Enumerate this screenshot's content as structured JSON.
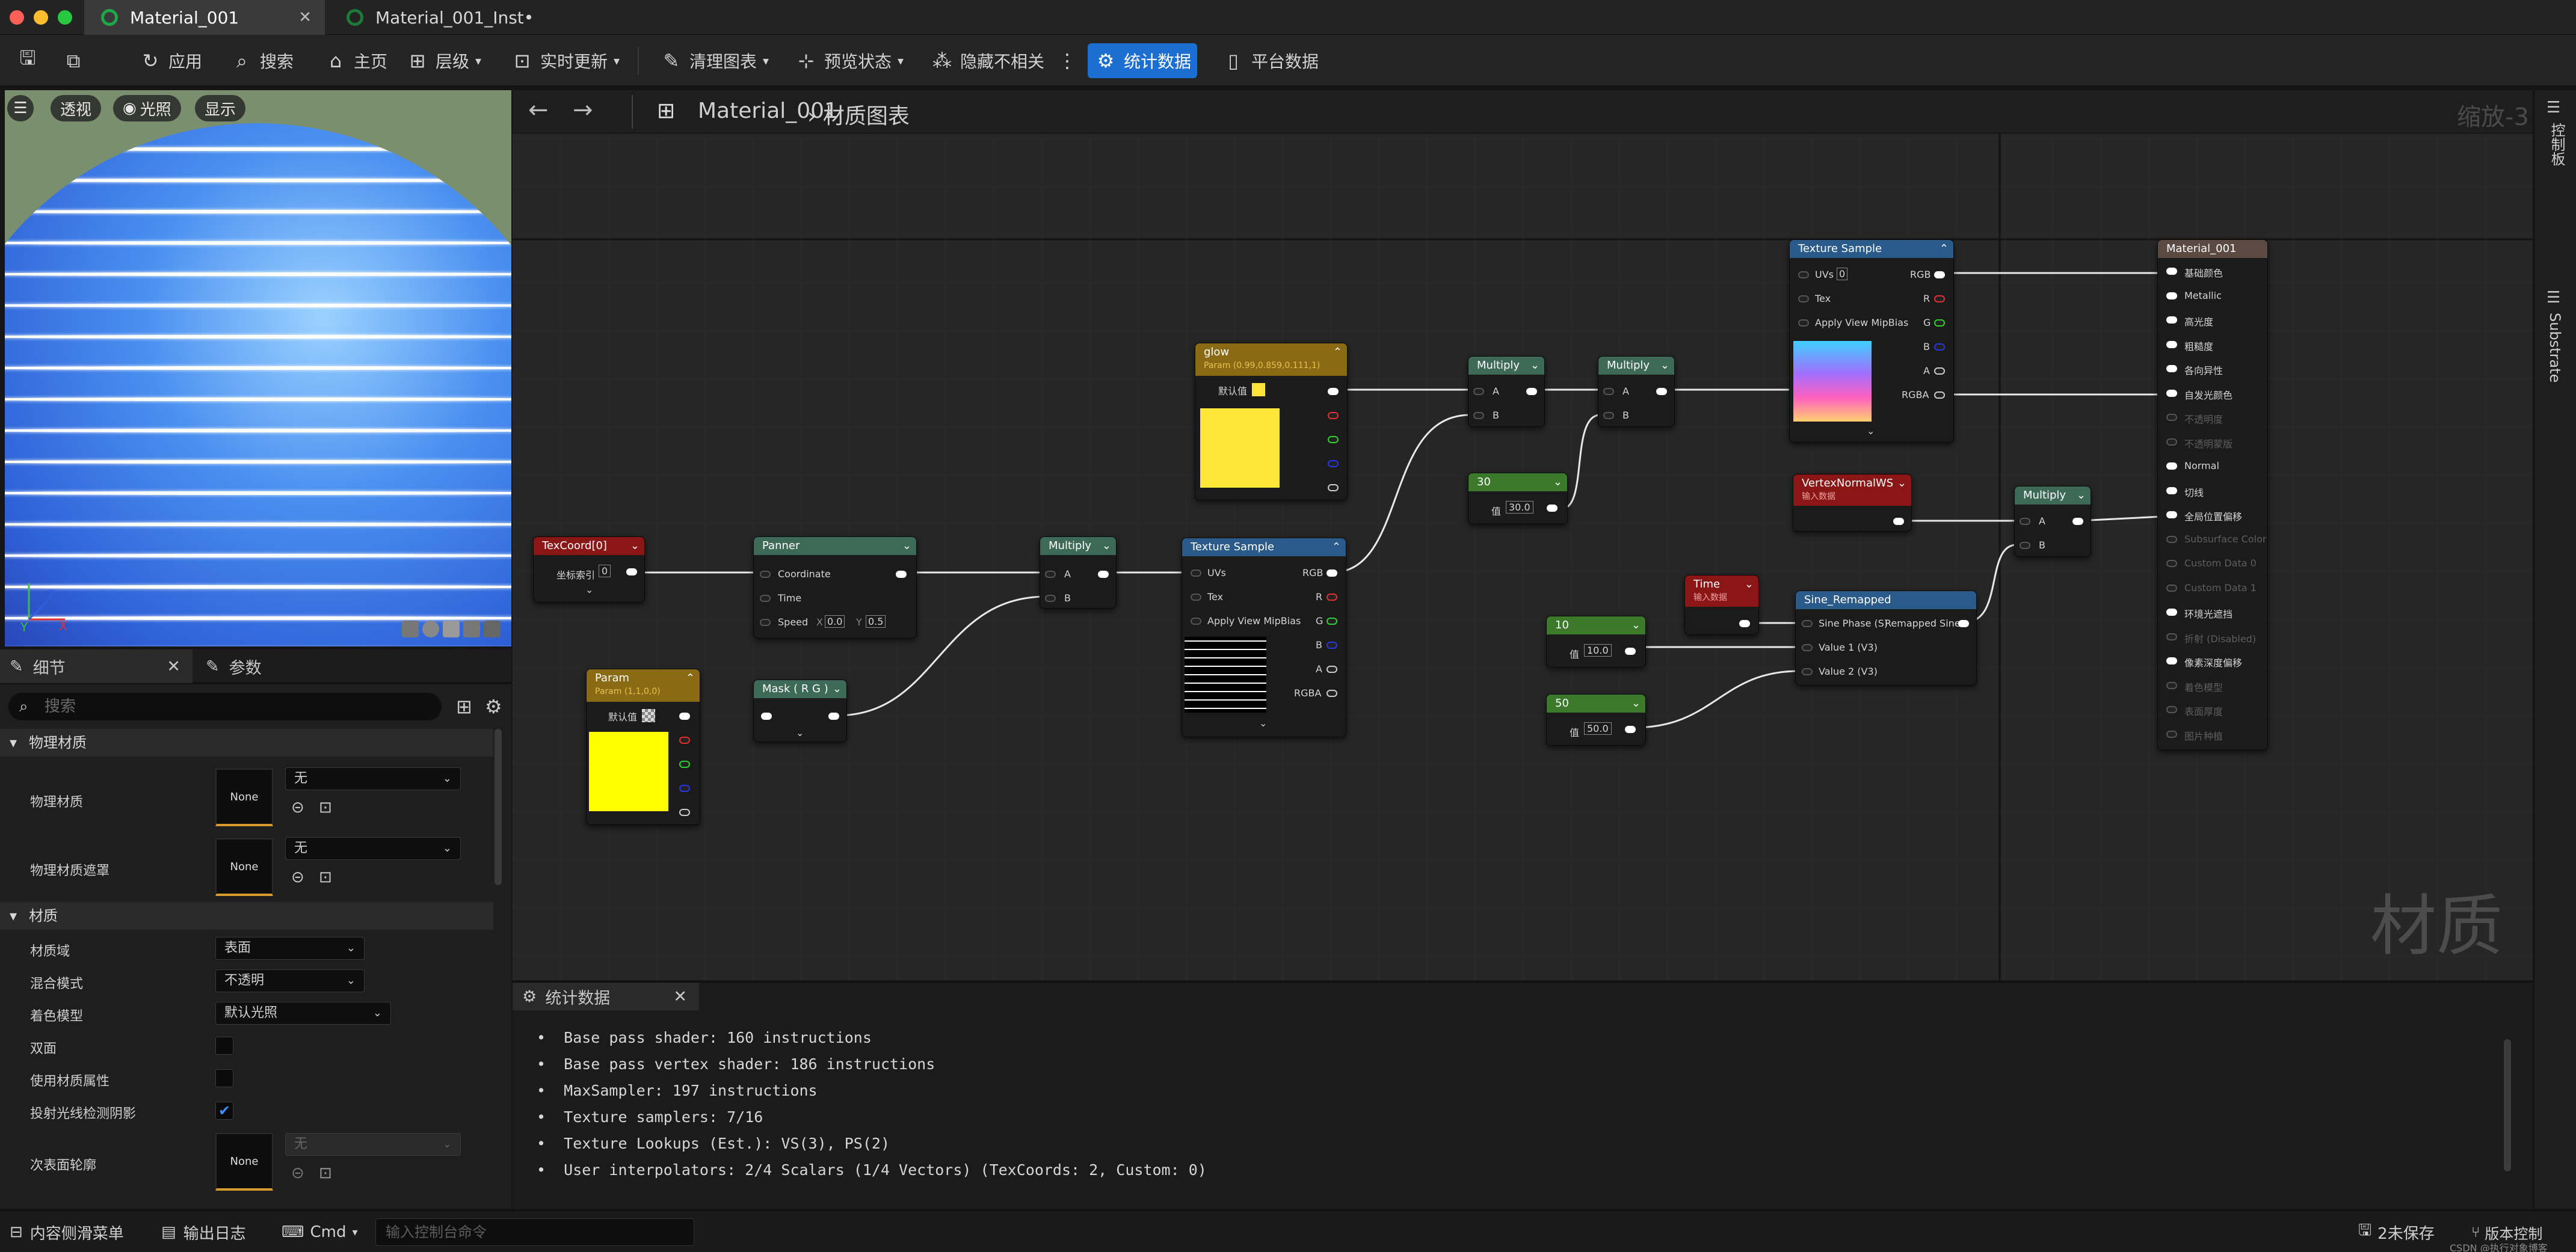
{
  "tabs": [
    {
      "label": "Material_001"
    },
    {
      "label": "Material_001_Inst•"
    }
  ],
  "toolbar": {
    "apply": "应用",
    "search": "搜索",
    "home": "主页",
    "hierarchy": "层级",
    "live_update": "实时更新",
    "clean_graph": "清理图表",
    "preview_state": "预览状态",
    "hide_unrelated": "隐藏不相关",
    "stats": "统计数据",
    "platform_stats": "平台数据"
  },
  "viewport": {
    "perspective": "透视",
    "lit": "光照",
    "show": "显示"
  },
  "details": {
    "tab_details": "细节",
    "tab_params": "参数",
    "search_placeholder": "搜索",
    "cat_physical": "物理材质",
    "phys_mat_label": "物理材质",
    "phys_mat_value": "无",
    "phys_mat_thumb": "None",
    "phys_mask_label": "物理材质遮罩",
    "phys_mask_value": "无",
    "phys_mask_thumb": "None",
    "cat_material": "材质",
    "domain_label": "材质域",
    "domain_value": "表面",
    "blend_label": "混合模式",
    "blend_value": "不透明",
    "shading_label": "着色模型",
    "shading_value": "默认光照",
    "twosided_label": "双面",
    "use_attr_label": "使用材质属性",
    "raytrace_shadow_label": "投射光线检测阴影",
    "subsurface_label": "次表面轮廓",
    "subsurface_value": "无",
    "subsurface_thumb": "None"
  },
  "graph": {
    "title": "Material_001",
    "breadcrumb": "材质图表",
    "zoom": "缩放-3",
    "watermark": "材质"
  },
  "nodes": {
    "texcoord": {
      "title": "TexCoord[0]",
      "pin": "坐标索引",
      "value": "0"
    },
    "panner": {
      "title": "Panner",
      "coord": "Coordinate",
      "time": "Time",
      "speed": "Speed",
      "x": "0.0",
      "y": "0.5"
    },
    "multiply1": {
      "title": "Multiply",
      "a": "A",
      "b": "B"
    },
    "mask": {
      "title": "Mask ( R G )"
    },
    "param": {
      "title": "Param",
      "sub": "Param (1,1,0,0)",
      "default": "默认值"
    },
    "glow": {
      "title": "glow",
      "sub": "Param (0.99,0.859,0.111,1)",
      "default": "默认值"
    },
    "texsample1": {
      "title": "Texture Sample",
      "uvs": "UVs",
      "tex": "Tex",
      "mip": "Apply View MipBias",
      "rgb": "RGB",
      "r": "R",
      "g": "G",
      "b": "B",
      "a": "A",
      "rgba": "RGBA"
    },
    "multiply2": {
      "title": "Multiply",
      "a": "A",
      "b": "B"
    },
    "multiply3": {
      "title": "Multiply",
      "a": "A",
      "b": "B"
    },
    "const30": {
      "title": "30",
      "label": "值",
      "value": "30.0"
    },
    "texsample2": {
      "title": "Texture Sample",
      "uvs": "UVs",
      "uvs_val": "0",
      "tex": "Tex",
      "mip": "Apply View MipBias",
      "rgb": "RGB",
      "r": "R",
      "g": "G",
      "b": "B",
      "a": "A",
      "rgba": "RGBA"
    },
    "vertexnormal": {
      "title": "VertexNormalWS",
      "sub": "输入数据"
    },
    "multiply4": {
      "title": "Multiply",
      "a": "A",
      "b": "B"
    },
    "time": {
      "title": "Time",
      "sub": "输入数据"
    },
    "sine": {
      "title": "Sine_Remapped",
      "phase": "Sine Phase (S)",
      "out": "Remapped Sine",
      "v1": "Value 1 (V3)",
      "v2": "Value 2 (V3)"
    },
    "const10": {
      "title": "10",
      "label": "值",
      "value": "10.0"
    },
    "const50": {
      "title": "50",
      "label": "值",
      "value": "50.0"
    },
    "material": {
      "title": "Material_001",
      "pins": [
        "基础颜色",
        "Metallic",
        "高光度",
        "粗糙度",
        "各向异性",
        "自发光颜色",
        "不透明度",
        "不透明蒙版",
        "Normal",
        "切线",
        "全局位置偏移",
        "Subsurface Color",
        "Custom Data 0",
        "Custom Data 1",
        "环境光遮挡",
        "折射 (Disabled)",
        "像素深度偏移",
        "着色模型",
        "表面厚度",
        "图片种植"
      ]
    }
  },
  "stats": {
    "tab": "统计数据",
    "lines": [
      "Base pass shader: 160 instructions",
      "Base pass vertex shader: 186 instructions",
      "MaxSampler: 197 instructions",
      "Texture samplers: 7/16",
      "Texture Lookups (Est.): VS(3), PS(2)",
      "User interpolators: 2/4 Scalars (1/4 Vectors) (TexCoords: 2, Custom: 0)"
    ]
  },
  "statusbar": {
    "content_drawer": "内容侧滑菜单",
    "output_log": "输出日志",
    "cmd": "Cmd",
    "cmd_placeholder": "输入控制台命令",
    "unsaved": "2未保存",
    "source_control": "版本控制",
    "watermark": "CSDN @执行对象博客"
  },
  "rightrail": {
    "panel1": "控制板",
    "panel2": "Substrate"
  }
}
